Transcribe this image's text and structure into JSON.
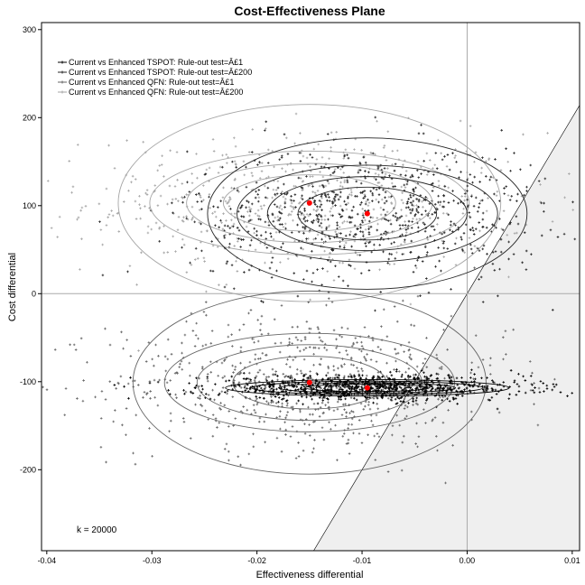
{
  "chart_data": {
    "type": "scatter",
    "title": "Cost-Effectiveness Plane",
    "xlabel": "Effectiveness differential",
    "ylabel": "Cost differential",
    "xlim": [
      -0.0405,
      0.0107
    ],
    "ylim": [
      -292,
      308
    ],
    "xticks": [
      -0.04,
      -0.03,
      -0.02,
      -0.01,
      0.0,
      0.01
    ],
    "xtick_labels": [
      "-0.04",
      "-0.03",
      "-0.02",
      "-0.01",
      "0.00",
      "0.01"
    ],
    "yticks": [
      -200,
      -100,
      0,
      100,
      200,
      300
    ],
    "ytick_labels": [
      "-200",
      "-100",
      "0",
      "100",
      "200",
      "300"
    ],
    "grid": false,
    "legend_position": "top-left",
    "annotation": "k = 20000",
    "wtp_threshold": 20000,
    "acceptability_region_color": "#efefef",
    "series": [
      {
        "name": "Current vs Enhanced TSPOT: Rule-out test=Â£1",
        "color": "#000000",
        "mean": [
          -0.0095,
          -107
        ],
        "sd": [
          0.0075,
          7
        ],
        "n": 900,
        "contours": [
          [
            0.0059,
            4.2
          ],
          [
            0.0084,
            5.9
          ],
          [
            0.011,
            7.6
          ],
          [
            0.0135,
            9.4
          ]
        ]
      },
      {
        "name": "Current vs Enhanced TSPOT: Rule-out test=Â£200",
        "color": "#262626",
        "mean": [
          -0.0095,
          91
        ],
        "sd": [
          0.0085,
          38
        ],
        "n": 750,
        "contours": [
          [
            0.0066,
            30
          ],
          [
            0.0095,
            42
          ],
          [
            0.0124,
            55
          ],
          [
            0.0152,
            86
          ]
        ]
      },
      {
        "name": "Current vs Enhanced QFN: Rule-out test=Â£1",
        "color": "#666666",
        "mean": [
          -0.015,
          -101
        ],
        "sd": [
          0.0095,
          38
        ],
        "n": 750,
        "contours": [
          [
            0.0073,
            30
          ],
          [
            0.0107,
            43
          ],
          [
            0.0138,
            56
          ],
          [
            0.0168,
            104
          ]
        ]
      },
      {
        "name": "Current vs Enhanced QFN: Rule-out test=Â£200",
        "color": "#a6a6a6",
        "mean": [
          -0.015,
          103
        ],
        "sd": [
          0.0105,
          40
        ],
        "n": 650,
        "contours": [
          [
            0.0082,
            32
          ],
          [
            0.0117,
            45
          ],
          [
            0.0152,
            59
          ],
          [
            0.0182,
            112
          ]
        ]
      }
    ]
  }
}
